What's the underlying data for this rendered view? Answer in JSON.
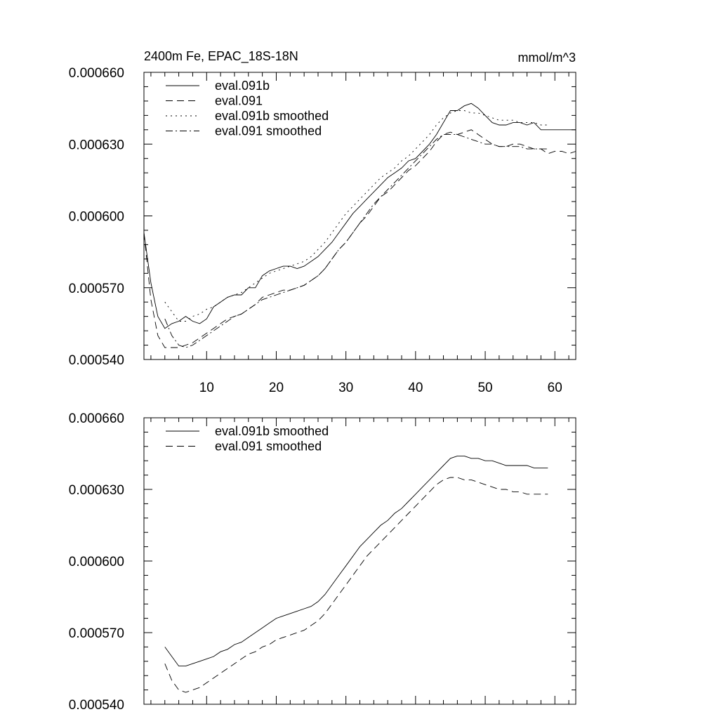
{
  "chart_data": [
    {
      "type": "line",
      "title_left": "2400m Fe, EPAC_18S-18N",
      "title_right": "mmol/m^3",
      "xlim": [
        1,
        63
      ],
      "ylim": [
        0.00054,
        0.00066
      ],
      "x_ticks": [
        10,
        20,
        30,
        40,
        50,
        60
      ],
      "x_tick_labels": [
        "10",
        "20",
        "30",
        "40",
        "50",
        "60"
      ],
      "y_ticks": [
        0.00054,
        0.00057,
        0.0006,
        0.00063,
        0.00066
      ],
      "y_tick_labels": [
        "0.000540",
        "0.000570",
        "0.000600",
        "0.000630",
        "0.000660"
      ],
      "legend_position": "top-left",
      "series": [
        {
          "name": "eval.091b",
          "style": "solid",
          "x": [
            1,
            2,
            3,
            4,
            5,
            6,
            7,
            8,
            9,
            10,
            11,
            12,
            13,
            14,
            15,
            16,
            17,
            18,
            19,
            20,
            21,
            22,
            23,
            24,
            25,
            26,
            27,
            28,
            29,
            30,
            31,
            32,
            33,
            34,
            35,
            36,
            37,
            38,
            39,
            40,
            41,
            42,
            43,
            44,
            45,
            46,
            47,
            48,
            49,
            50,
            51,
            52,
            53,
            54,
            55,
            56,
            57,
            58,
            59,
            60,
            61,
            62,
            63
          ],
          "values": [
            0.000593,
            0.000572,
            0.000558,
            0.000553,
            0.000555,
            0.000556,
            0.000558,
            0.000556,
            0.000555,
            0.000557,
            0.000562,
            0.000564,
            0.000566,
            0.000567,
            0.000567,
            0.00057,
            0.00057,
            0.000575,
            0.000577,
            0.000578,
            0.000579,
            0.000579,
            0.000578,
            0.000579,
            0.000581,
            0.000583,
            0.000586,
            0.000589,
            0.000593,
            0.000597,
            0.000601,
            0.000604,
            0.000607,
            0.00061,
            0.000613,
            0.000616,
            0.000618,
            0.00062,
            0.000623,
            0.000624,
            0.000627,
            0.00063,
            0.000634,
            0.000639,
            0.000644,
            0.000644,
            0.000646,
            0.000647,
            0.000645,
            0.000642,
            0.000639,
            0.000638,
            0.000638,
            0.000639,
            0.000639,
            0.000638,
            0.000639,
            0.000636,
            0.000636,
            0.000636,
            0.000636,
            0.000636,
            0.000636
          ]
        },
        {
          "name": "eval.091",
          "style": "dashed",
          "x": [
            1,
            2,
            3,
            4,
            5,
            6,
            7,
            8,
            9,
            10,
            11,
            12,
            13,
            14,
            15,
            16,
            17,
            18,
            19,
            20,
            21,
            22,
            23,
            24,
            25,
            26,
            27,
            28,
            29,
            30,
            31,
            32,
            33,
            34,
            35,
            36,
            37,
            38,
            39,
            40,
            41,
            42,
            43,
            44,
            45,
            46,
            47,
            48,
            49,
            50,
            51,
            52,
            53,
            54,
            55,
            56,
            57,
            58,
            59,
            60,
            61,
            62,
            63
          ],
          "values": [
            0.000593,
            0.000565,
            0.00055,
            0.000545,
            0.000545,
            0.000545,
            0.000546,
            0.000547,
            0.000549,
            0.000551,
            0.000553,
            0.000555,
            0.000557,
            0.000558,
            0.000559,
            0.000561,
            0.000563,
            0.000566,
            0.000567,
            0.000568,
            0.000569,
            0.000569,
            0.00057,
            0.000571,
            0.000573,
            0.000575,
            0.000578,
            0.000582,
            0.000586,
            0.000589,
            0.000593,
            0.000597,
            0.0006,
            0.000604,
            0.000608,
            0.00061,
            0.000613,
            0.000616,
            0.000619,
            0.000621,
            0.000624,
            0.000627,
            0.000631,
            0.000634,
            0.000635,
            0.000634,
            0.000635,
            0.000636,
            0.000634,
            0.000632,
            0.00063,
            0.000629,
            0.000629,
            0.00063,
            0.00063,
            0.000629,
            0.000628,
            0.000628,
            0.000626,
            0.000627,
            0.000627,
            0.000626,
            0.000627
          ]
        },
        {
          "name": "eval.091b smoothed",
          "style": "dotted",
          "x": [
            4,
            5,
            6,
            7,
            8,
            9,
            10,
            11,
            12,
            13,
            14,
            15,
            16,
            17,
            18,
            19,
            20,
            21,
            22,
            23,
            24,
            25,
            26,
            27,
            28,
            29,
            30,
            31,
            32,
            33,
            34,
            35,
            36,
            37,
            38,
            39,
            40,
            41,
            42,
            43,
            44,
            45,
            46,
            47,
            48,
            49,
            50,
            51,
            52,
            53,
            54,
            55,
            56,
            57,
            58,
            59
          ],
          "values": [
            0.000564,
            0.00056,
            0.000556,
            0.000556,
            0.000558,
            0.000559,
            0.000561,
            0.000562,
            0.000564,
            0.000566,
            0.000567,
            0.000568,
            0.00057,
            0.000572,
            0.000574,
            0.000576,
            0.000577,
            0.000578,
            0.000579,
            0.00058,
            0.000581,
            0.000583,
            0.000586,
            0.000589,
            0.000593,
            0.000597,
            0.000601,
            0.000604,
            0.000607,
            0.00061,
            0.000613,
            0.000616,
            0.000618,
            0.00062,
            0.000623,
            0.000625,
            0.000628,
            0.000631,
            0.000634,
            0.000638,
            0.000641,
            0.000643,
            0.000644,
            0.000644,
            0.000643,
            0.000643,
            0.000642,
            0.000641,
            0.00064,
            0.00064,
            0.00064,
            0.000639,
            0.000639,
            0.000639,
            0.000638,
            0.000638
          ]
        },
        {
          "name": "eval.091 smoothed",
          "style": "dashdot",
          "x": [
            4,
            5,
            6,
            7,
            8,
            9,
            10,
            11,
            12,
            13,
            14,
            15,
            16,
            17,
            18,
            19,
            20,
            21,
            22,
            23,
            24,
            25,
            26,
            27,
            28,
            29,
            30,
            31,
            32,
            33,
            34,
            35,
            36,
            37,
            38,
            39,
            40,
            41,
            42,
            43,
            44,
            45,
            46,
            47,
            48,
            49,
            50,
            51,
            52,
            53,
            54,
            55,
            56,
            57,
            58,
            59
          ],
          "values": [
            0.000557,
            0.00055,
            0.000546,
            0.000545,
            0.000546,
            0.000548,
            0.00055,
            0.000552,
            0.000554,
            0.000556,
            0.000558,
            0.000559,
            0.000561,
            0.000563,
            0.000565,
            0.000566,
            0.000567,
            0.000568,
            0.000569,
            0.00057,
            0.000571,
            0.000573,
            0.000575,
            0.000578,
            0.000582,
            0.000586,
            0.000589,
            0.000593,
            0.000597,
            0.000601,
            0.000605,
            0.000608,
            0.000611,
            0.000614,
            0.000617,
            0.00062,
            0.000623,
            0.000626,
            0.000629,
            0.000632,
            0.000634,
            0.000634,
            0.000634,
            0.000633,
            0.000632,
            0.000631,
            0.00063,
            0.00063,
            0.000629,
            0.000629,
            0.000629,
            0.000629,
            0.000628,
            0.000628,
            0.000628,
            0.000628
          ]
        }
      ]
    },
    {
      "type": "line",
      "xlim": [
        1,
        63
      ],
      "ylim": [
        0.00054,
        0.00066
      ],
      "x_ticks": [
        10,
        20,
        30,
        40,
        50,
        60
      ],
      "y_ticks": [
        0.00054,
        0.00057,
        0.0006,
        0.00063,
        0.00066
      ],
      "y_tick_labels": [
        "0.000540",
        "0.000570",
        "0.000600",
        "0.000630",
        "0.000660"
      ],
      "legend_position": "top-left",
      "series": [
        {
          "name": "eval.091b smoothed",
          "style": "solid",
          "x": [
            4,
            5,
            6,
            7,
            8,
            9,
            10,
            11,
            12,
            13,
            14,
            15,
            16,
            17,
            18,
            19,
            20,
            21,
            22,
            23,
            24,
            25,
            26,
            27,
            28,
            29,
            30,
            31,
            32,
            33,
            34,
            35,
            36,
            37,
            38,
            39,
            40,
            41,
            42,
            43,
            44,
            45,
            46,
            47,
            48,
            49,
            50,
            51,
            52,
            53,
            54,
            55,
            56,
            57,
            58,
            59
          ],
          "values": [
            0.000564,
            0.00056,
            0.000556,
            0.000556,
            0.000557,
            0.000558,
            0.000559,
            0.00056,
            0.000562,
            0.000563,
            0.000565,
            0.000566,
            0.000568,
            0.00057,
            0.000572,
            0.000574,
            0.000576,
            0.000577,
            0.000578,
            0.000579,
            0.00058,
            0.000581,
            0.000583,
            0.000586,
            0.00059,
            0.000594,
            0.000598,
            0.000602,
            0.000606,
            0.000609,
            0.000612,
            0.000615,
            0.000617,
            0.00062,
            0.000622,
            0.000625,
            0.000628,
            0.000631,
            0.000634,
            0.000637,
            0.00064,
            0.000643,
            0.000644,
            0.000644,
            0.000643,
            0.000643,
            0.000642,
            0.000642,
            0.000641,
            0.00064,
            0.00064,
            0.00064,
            0.00064,
            0.000639,
            0.000639,
            0.000639
          ]
        },
        {
          "name": "eval.091 smoothed",
          "style": "dashed",
          "x": [
            4,
            5,
            6,
            7,
            8,
            9,
            10,
            11,
            12,
            13,
            14,
            15,
            16,
            17,
            18,
            19,
            20,
            21,
            22,
            23,
            24,
            25,
            26,
            27,
            28,
            29,
            30,
            31,
            32,
            33,
            34,
            35,
            36,
            37,
            38,
            39,
            40,
            41,
            42,
            43,
            44,
            45,
            46,
            47,
            48,
            49,
            50,
            51,
            52,
            53,
            54,
            55,
            56,
            57,
            58,
            59
          ],
          "values": [
            0.000557,
            0.00055,
            0.000546,
            0.000545,
            0.000546,
            0.000547,
            0.000549,
            0.000551,
            0.000553,
            0.000555,
            0.000557,
            0.000559,
            0.000561,
            0.000562,
            0.000564,
            0.000565,
            0.000567,
            0.000568,
            0.000569,
            0.00057,
            0.000571,
            0.000573,
            0.000575,
            0.000578,
            0.000582,
            0.000586,
            0.00059,
            0.000594,
            0.000598,
            0.000602,
            0.000605,
            0.000608,
            0.000611,
            0.000614,
            0.000617,
            0.00062,
            0.000623,
            0.000626,
            0.000629,
            0.000632,
            0.000634,
            0.000635,
            0.000635,
            0.000634,
            0.000634,
            0.000633,
            0.000632,
            0.000631,
            0.00063,
            0.00063,
            0.000629,
            0.000629,
            0.000628,
            0.000628,
            0.000628,
            0.000628
          ]
        }
      ]
    }
  ]
}
